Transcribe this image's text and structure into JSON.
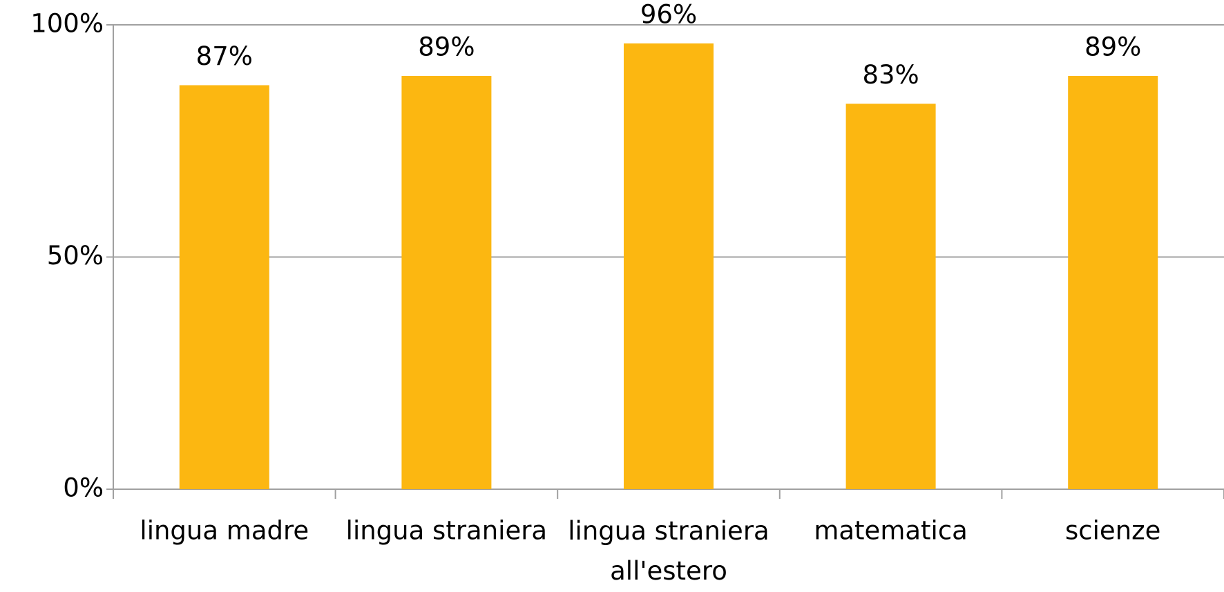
{
  "chart_data": {
    "type": "bar",
    "categories": [
      "lingua madre",
      "lingua straniera",
      "lingua straniera all'estero",
      "matematica",
      "scienze"
    ],
    "values": [
      87,
      89,
      96,
      83,
      89
    ],
    "value_labels": [
      "87%",
      "89%",
      "96%",
      "83%",
      "89%"
    ],
    "color": "#fcb711",
    "ylim": [
      0,
      100
    ],
    "yticks": [
      {
        "value": 0,
        "label": "0%"
      },
      {
        "value": 50,
        "label": "50%"
      },
      {
        "value": 100,
        "label": "100%"
      }
    ],
    "grid": true
  }
}
